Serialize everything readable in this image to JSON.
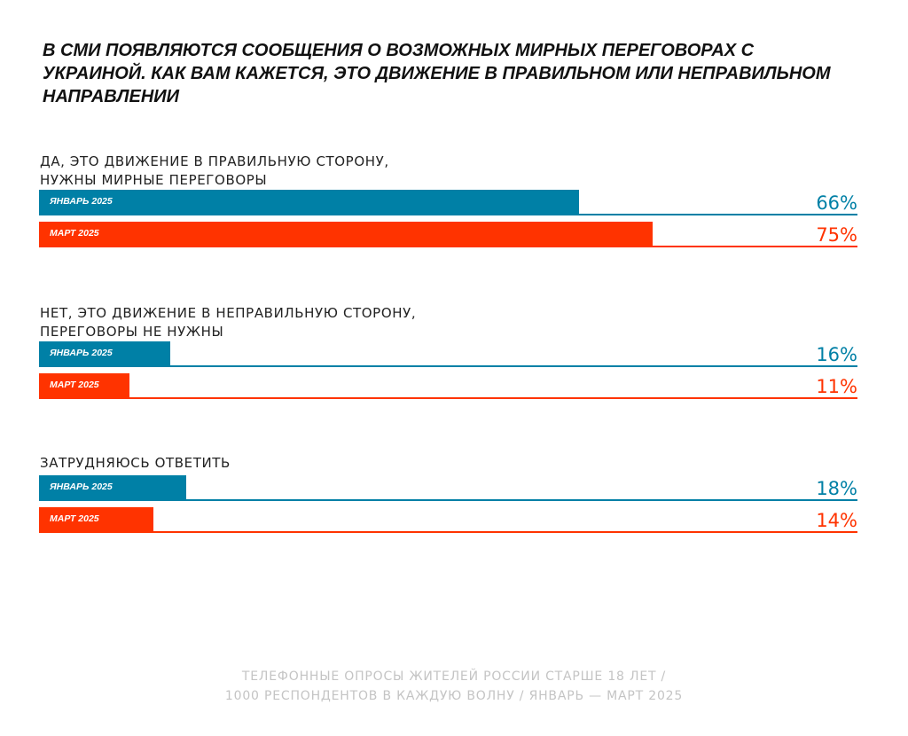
{
  "colors": {
    "january": "#0080A6",
    "march": "#FF3300"
  },
  "title": "В СМИ появляются сообщения о возможных мирных переговорах с Украиной. Как вам кажется, это движение в правильном или неправильном направлении",
  "chart_data": {
    "type": "bar",
    "orientation": "horizontal",
    "title": "В СМИ появляются сообщения о возможных мирных переговорах с Украиной. Как вам кажется, это движение в правильном или неправильном направлении",
    "unit": "%",
    "xlim": [
      0,
      100
    ],
    "series_names": [
      "ЯНВАРЬ 2025",
      "МАРТ 2025"
    ],
    "groups": [
      {
        "label": "ДА, ЭТО ДВИЖЕНИЕ В ПРАВИЛЬНУЮ СТОРОНУ,\nНУЖНЫ МИРНЫЕ ПЕРЕГОВОРЫ",
        "values": [
          66,
          75
        ],
        "value_labels": [
          "66%",
          "75%"
        ]
      },
      {
        "label": "НЕТ, ЭТО ДВИЖЕНИЕ В НЕПРАВИЛЬНУЮ СТОРОНУ,\nПЕРЕГОВОРЫ НЕ НУЖНЫ",
        "values": [
          16,
          11
        ],
        "value_labels": [
          "16%",
          "11%"
        ]
      },
      {
        "label": "ЗАТРУДНЯЮСЬ ОТВЕТИТЬ",
        "values": [
          18,
          14
        ],
        "value_labels": [
          "18%",
          "14%"
        ]
      }
    ]
  },
  "footer": {
    "line1": "ТЕЛЕФОННЫЕ ОПРОСЫ ЖИТЕЛЕЙ РОССИИ СТАРШЕ 18 ЛЕТ /",
    "line2": "1000 РЕСПОНДЕНТОВ В КАЖДУЮ ВОЛНУ / ЯНВАРЬ — МАРТ 2025"
  }
}
